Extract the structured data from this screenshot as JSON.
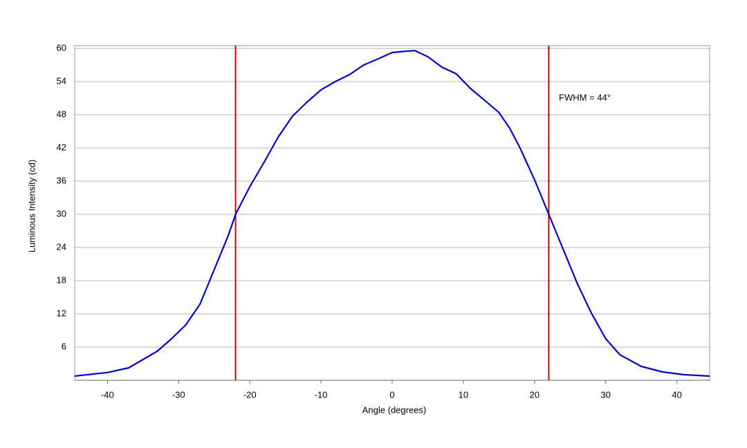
{
  "chart_data": {
    "type": "line",
    "annotation": "FWHM = 44°",
    "x_label": "Angle (degrees)",
    "y_label": "Luminous Intensity (cd)",
    "x": [
      -44.6,
      -40,
      -37,
      -35,
      -33,
      -31,
      -29,
      -27,
      -25,
      -23,
      -22,
      -20,
      -18,
      -16,
      -14,
      -12,
      -10,
      -8,
      -6,
      -4,
      -2,
      0,
      2,
      3.2,
      5,
      7,
      9,
      11,
      13,
      15,
      16.5,
      18,
      20,
      22,
      24,
      26,
      28,
      30,
      32,
      35,
      38,
      41,
      44.6
    ],
    "series": [
      {
        "color": "#0000cc",
        "values": [
          0.75,
          1.4,
          2.25,
          3.75,
          5.25,
          7.5,
          10,
          13.75,
          20,
          26.25,
          30,
          35,
          39.4,
          44,
          47.75,
          50.25,
          52.5,
          54,
          55.25,
          57,
          58.1,
          59.25,
          59.5,
          59.6,
          58.5,
          56.6,
          55.4,
          52.75,
          50.6,
          48.4,
          45.6,
          41.9,
          36.25,
          30,
          23.75,
          17.5,
          12.1,
          7.5,
          4.6,
          2.5,
          1.5,
          1.0,
          0.75
        ]
      }
    ],
    "vlines": [
      -22,
      22
    ],
    "vline_color": "#cc0000",
    "xlim": [
      -44.6,
      44.6
    ],
    "xticks": [
      -40,
      -30,
      -20,
      -10,
      0,
      10,
      20,
      30,
      40
    ],
    "ylim": [
      0,
      60
    ],
    "yticks": [
      6,
      12,
      18,
      24,
      30,
      36,
      42,
      48,
      54,
      60
    ],
    "grid": true
  }
}
